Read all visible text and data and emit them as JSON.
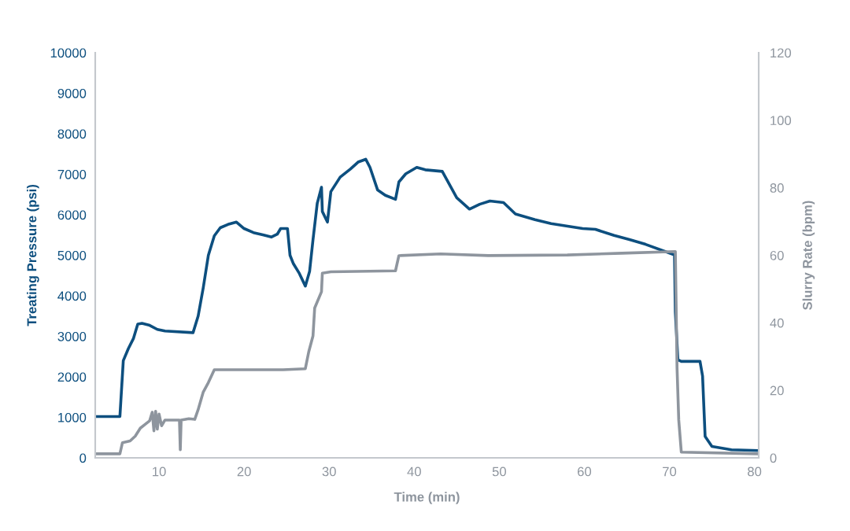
{
  "chart_data": {
    "type": "line",
    "xlabel": "Time (min)",
    "ylabel": "Treating Pressure (psi)",
    "y2label": "Slurry Rate (bpm)",
    "xlim": [
      2.5,
      80.5
    ],
    "xticks": [
      10,
      20,
      30,
      40,
      50,
      60,
      70,
      80
    ],
    "ylim": [
      0,
      10000
    ],
    "yticks": [
      0,
      1000,
      2000,
      3000,
      4000,
      5000,
      6000,
      7000,
      8000,
      9000,
      10000
    ],
    "y2lim": [
      0,
      120
    ],
    "y2ticks": [
      0,
      20,
      40,
      60,
      80,
      100,
      120
    ],
    "grid": false,
    "legend": false,
    "marker": "none",
    "line_style": "solid",
    "series": [
      {
        "color": "#0d4f7f",
        "x": [
          2.5,
          5.4,
          5.8,
          6.4,
          7.0,
          7.5,
          8.0,
          8.9,
          9.8,
          10.7,
          14.0,
          14.6,
          15.2,
          15.8,
          16.5,
          17.2,
          18.1,
          19.1,
          20.0,
          21.1,
          22.3,
          23.2,
          23.9,
          24.3,
          25.1,
          25.4,
          25.8,
          26.5,
          27.2,
          27.7,
          28.1,
          28.6,
          29.1,
          29.2,
          29.8,
          30.2,
          31.3,
          32.5,
          33.4,
          34.3,
          34.8,
          35.7,
          36.6,
          37.8,
          38.2,
          39.0,
          40.3,
          41.3,
          43.3,
          45.0,
          46.5,
          47.7,
          48.9,
          50.5,
          51.9,
          54.2,
          56.1,
          59.8,
          61.3,
          63.5,
          65.3,
          67.2,
          70.6,
          70.7,
          71.0,
          71.4,
          73.6,
          73.9,
          74.2,
          75.0,
          77.3,
          80.3
        ],
        "values": [
          1020,
          1020,
          2400,
          2700,
          2950,
          3300,
          3320,
          3270,
          3170,
          3130,
          3090,
          3500,
          4200,
          5000,
          5480,
          5680,
          5760,
          5820,
          5660,
          5560,
          5500,
          5450,
          5520,
          5660,
          5660,
          5000,
          4790,
          4550,
          4240,
          4600,
          5380,
          6280,
          6680,
          6080,
          5820,
          6570,
          6930,
          7130,
          7300,
          7370,
          7170,
          6610,
          6480,
          6380,
          6810,
          7010,
          7170,
          7110,
          7070,
          6420,
          6140,
          6260,
          6340,
          6300,
          6020,
          5880,
          5780,
          5660,
          5640,
          5490,
          5390,
          5270,
          5010,
          3600,
          2420,
          2380,
          2380,
          2020,
          530,
          280,
          200,
          180
        ]
      },
      {
        "color": "#8e959e",
        "axis": "y2",
        "x": [
          2.5,
          5.4,
          5.7,
          6.6,
          7.2,
          7.8,
          8.4,
          8.9,
          9.2,
          9.4,
          9.6,
          9.8,
          10.0,
          10.3,
          10.7,
          12.4,
          12.5,
          12.6,
          13.5,
          14.2,
          14.6,
          15.2,
          15.8,
          16.5,
          24.6,
          27.2,
          27.6,
          28.1,
          28.3,
          29.1,
          29.2,
          30.2,
          37.8,
          38.2,
          43.1,
          48.7,
          58.0,
          64.4,
          70.7,
          70.9,
          71.1,
          71.4,
          80.3
        ],
        "values": [
          1.2,
          1.2,
          4.5,
          5,
          6.4,
          8.8,
          10,
          11,
          13.5,
          8,
          13.8,
          8.5,
          13,
          9.5,
          11.2,
          11.2,
          2.4,
          11.2,
          11.6,
          11.4,
          14.3,
          19.5,
          22.3,
          26.1,
          26.1,
          26.4,
          31.4,
          36.1,
          44.4,
          49.2,
          54.7,
          55.1,
          55.4,
          59.9,
          60.4,
          59.9,
          60.1,
          60.6,
          61.1,
          26.6,
          11.2,
          1.7,
          1.2
        ]
      }
    ]
  }
}
